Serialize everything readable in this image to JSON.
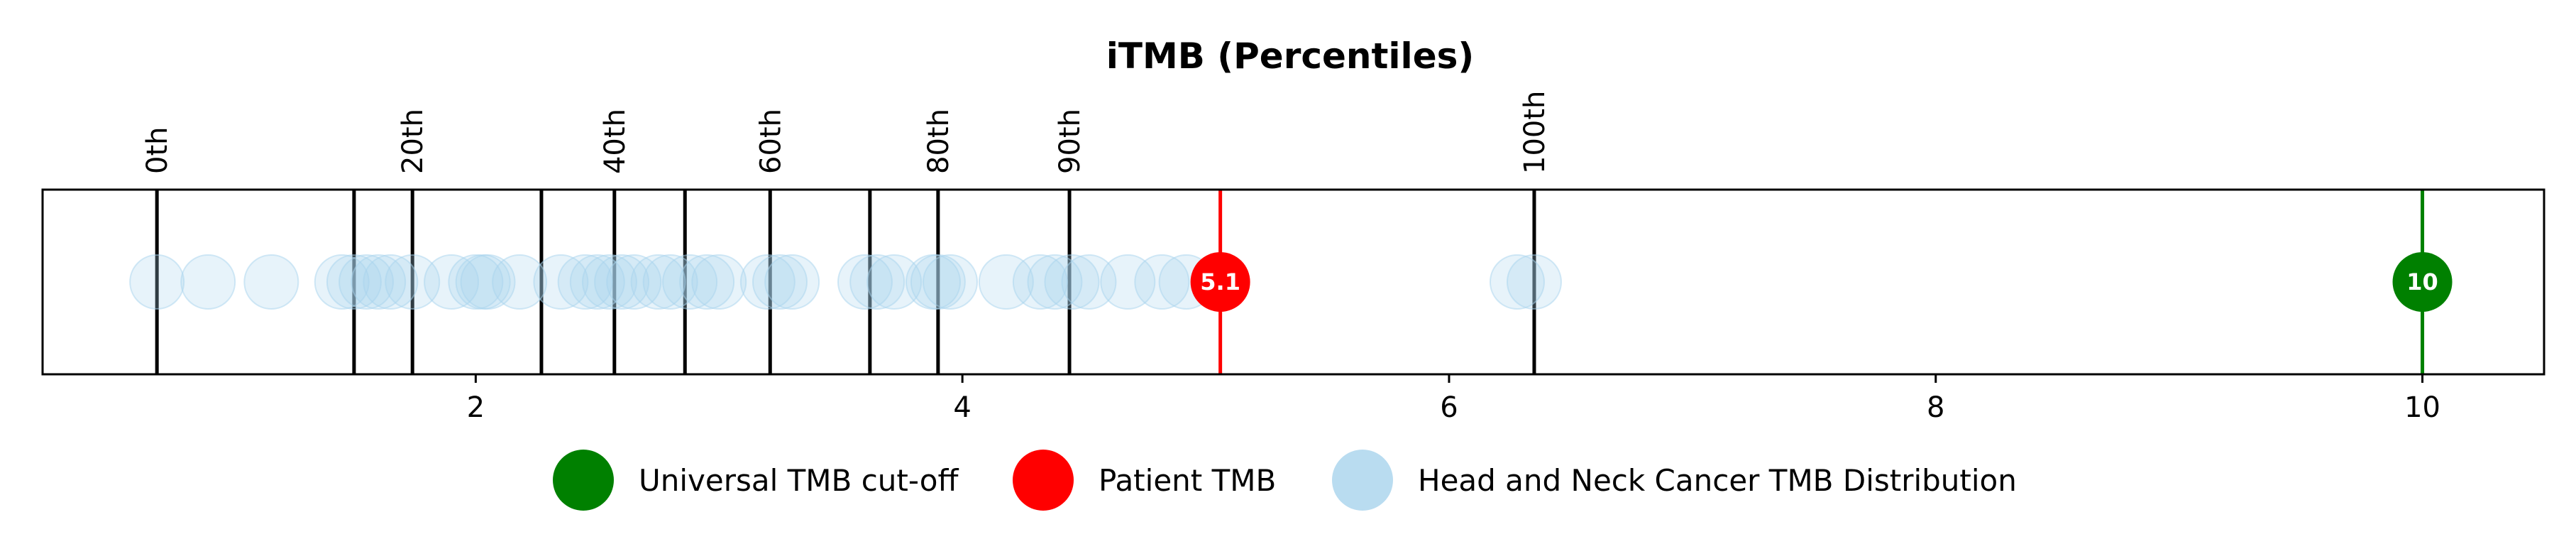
{
  "chart_data": {
    "type": "scatter",
    "title": "iTMB (Percentiles)",
    "xlabel": "",
    "ylabel": "",
    "xlim": [
      0.22,
      10.5
    ],
    "xticks": [
      2,
      4,
      6,
      8,
      10
    ],
    "xtick_labels": [
      "2",
      "4",
      "6",
      "8",
      "10"
    ],
    "percentiles": [
      {
        "label": "0th",
        "value": 0.69,
        "show_label": true
      },
      {
        "label": "",
        "value": 1.5,
        "show_label": false
      },
      {
        "label": "20th",
        "value": 1.74,
        "show_label": true
      },
      {
        "label": "",
        "value": 2.27,
        "show_label": false
      },
      {
        "label": "40th",
        "value": 2.57,
        "show_label": true
      },
      {
        "label": "",
        "value": 2.86,
        "show_label": false
      },
      {
        "label": "60th",
        "value": 3.21,
        "show_label": true
      },
      {
        "label": "",
        "value": 3.62,
        "show_label": false
      },
      {
        "label": "80th",
        "value": 3.9,
        "show_label": true
      },
      {
        "label": "90th",
        "value": 4.44,
        "show_label": true
      },
      {
        "label": "100th",
        "value": 6.35,
        "show_label": true
      }
    ],
    "distribution": [
      0.69,
      0.9,
      1.16,
      1.45,
      1.5,
      1.55,
      1.6,
      1.65,
      1.74,
      1.9,
      2.0,
      2.03,
      2.05,
      2.18,
      2.35,
      2.45,
      2.5,
      2.55,
      2.6,
      2.65,
      2.75,
      2.8,
      2.88,
      2.95,
      3.0,
      3.2,
      3.25,
      3.3,
      3.6,
      3.65,
      3.72,
      3.88,
      3.9,
      3.95,
      4.18,
      4.32,
      4.38,
      4.45,
      4.52,
      4.68,
      4.82,
      4.92,
      6.28,
      6.35
    ],
    "patient_tmb": {
      "value": 5.06,
      "label": "5.1"
    },
    "cutoff_tmb": {
      "value": 10,
      "label": "10"
    },
    "legend": {
      "placement": "bottom-center",
      "entries": [
        {
          "label": "Universal TMB cut-off",
          "color": "#008000"
        },
        {
          "label": "Patient TMB",
          "color": "#ff0000"
        },
        {
          "label": "Head and Neck Cancer TMB Distribution",
          "color": "#b9dcf0"
        }
      ]
    },
    "colors": {
      "distribution": "#a8d4ee",
      "patient": "#ff0000",
      "cutoff": "#008000",
      "frame": "#000000"
    }
  }
}
